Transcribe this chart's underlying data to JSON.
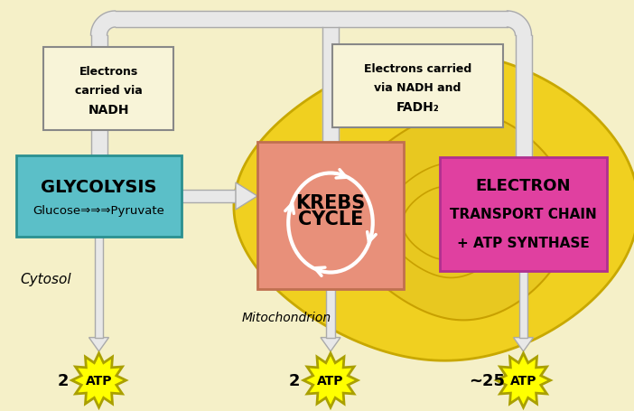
{
  "bg_color": "#f5f0c8",
  "glycolysis_color": "#5bbfc8",
  "krebs_box_color": "#e8907a",
  "etc_color": "#e040a0",
  "electrons_box_fill": "#f8f4d8",
  "electrons_box_border": "#888888",
  "atp_color": "#ffff00",
  "atp_border": "#aaa000",
  "mito_outer_color": "#f0d020",
  "mito_outer_edge": "#c8a800",
  "mito_inner_color": "#e8c820",
  "mito_inner_edge": "#c8a000",
  "arrow_fill": "#e8e8e8",
  "arrow_edge": "#aaaaaa",
  "line_color": "#c0c0c0",
  "glycolysis_text1": "GLYCOLYSIS",
  "glycolysis_text2": "Glucose⇒⇒⇒Pyruvate",
  "krebs_text1": "KREBS",
  "krebs_text2": "CYCLE",
  "etc_text1": "ELECTRON",
  "etc_text2": "TRANSPORT CHAIN",
  "etc_text3": "+ ATP SYNTHASE",
  "electrons1_line1": "Electrons",
  "electrons1_line2": "carried via",
  "electrons1_line3": "NADH",
  "electrons2_line1": "Electrons carried",
  "electrons2_line2": "via NADH and",
  "electrons2_line3": "FADH₂",
  "cytosol_text": "Cytosol",
  "mito_text": "Mitochondrion",
  "atp_labels": [
    "2",
    "2",
    "~25"
  ],
  "atp_text": "ATP"
}
